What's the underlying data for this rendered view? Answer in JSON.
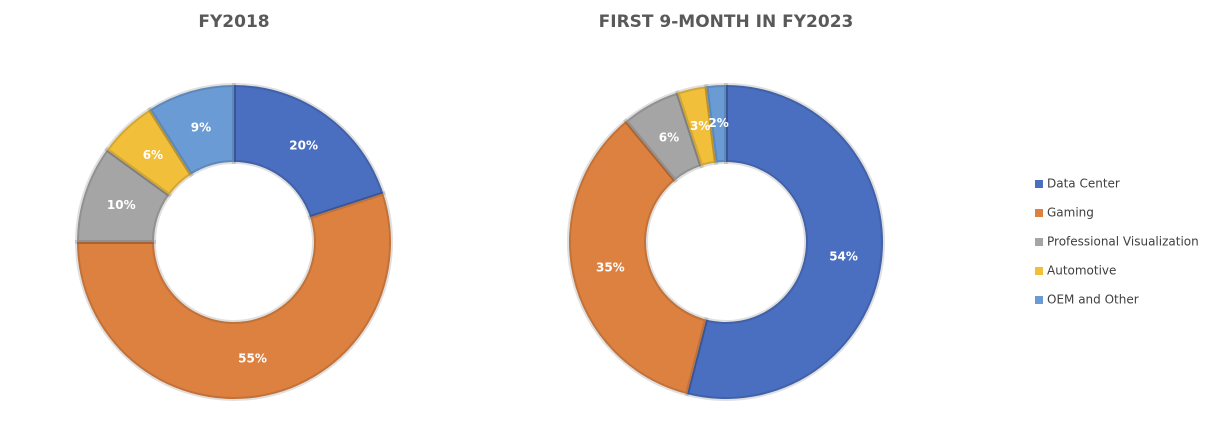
{
  "chart_data": [
    {
      "type": "donut",
      "title": "FY2018",
      "categories": [
        "Data Center",
        "Gaming",
        "Professional Visualization",
        "Automotive",
        "OEM and Other"
      ],
      "values": [
        20,
        55,
        10,
        6,
        9
      ],
      "value_labels": [
        "20%",
        "55%",
        "10%",
        "6%",
        "9%"
      ],
      "colors": [
        "#4a6fc0",
        "#dd8140",
        "#a5a5a5",
        "#f2bf3a",
        "#6a9bd4"
      ]
    },
    {
      "type": "donut",
      "title": "FIRST 9-MONTH IN FY2023",
      "categories": [
        "Data Center",
        "Gaming",
        "Professional Visualization",
        "Automotive",
        "OEM and Other"
      ],
      "values": [
        54,
        35,
        6,
        3,
        2
      ],
      "value_labels": [
        "54%",
        "35%",
        "6%",
        "3%",
        "2%"
      ],
      "colors": [
        "#4a6fc0",
        "#dd8140",
        "#a5a5a5",
        "#f2bf3a",
        "#6a9bd4"
      ],
      "legend": "right"
    }
  ]
}
